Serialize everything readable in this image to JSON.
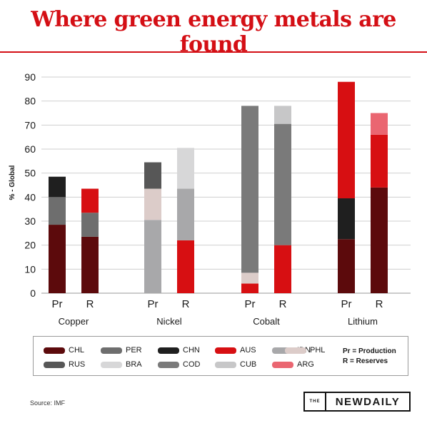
{
  "title": "Where green energy metals are found",
  "source": "Source: IMF",
  "logo": {
    "the": "THE",
    "name": "NEWDAILY"
  },
  "chart_data": {
    "type": "bar",
    "stacked": true,
    "ylabel": "% - Global",
    "ylim": [
      0,
      90
    ],
    "yticks": [
      0,
      10,
      20,
      30,
      40,
      50,
      60,
      70,
      80,
      90
    ],
    "grid": true,
    "groups": [
      {
        "name": "Copper",
        "bars": [
          {
            "label": "Pr",
            "segments": [
              {
                "code": "CHL",
                "value": 28.5
              },
              {
                "code": "PER",
                "value": 11.5
              },
              {
                "code": "CHN",
                "value": 8.5
              }
            ]
          },
          {
            "label": "R",
            "segments": [
              {
                "code": "CHL",
                "value": 23.5
              },
              {
                "code": "PER",
                "value": 10
              },
              {
                "code": "AUS",
                "value": 10
              }
            ]
          }
        ]
      },
      {
        "name": "Nickel",
        "bars": [
          {
            "label": "Pr",
            "segments": [
              {
                "code": "IDN",
                "value": 30.5
              },
              {
                "code": "PHL",
                "value": 13
              },
              {
                "code": "RUS",
                "value": 11
              }
            ]
          },
          {
            "label": "R",
            "segments": [
              {
                "code": "AUS",
                "value": 22
              },
              {
                "code": "IDN",
                "value": 21.5
              },
              {
                "code": "BRA",
                "value": 17
              }
            ]
          }
        ]
      },
      {
        "name": "Cobalt",
        "bars": [
          {
            "label": "Pr",
            "segments": [
              {
                "code": "AUS",
                "value": 4
              },
              {
                "code": "PHL",
                "value": 4.5
              },
              {
                "code": "COD",
                "value": 69.5
              }
            ]
          },
          {
            "label": "R",
            "segments": [
              {
                "code": "AUS",
                "value": 20
              },
              {
                "code": "COD",
                "value": 50.5
              },
              {
                "code": "CUB",
                "value": 7.5
              }
            ]
          }
        ]
      },
      {
        "name": "Lithium",
        "bars": [
          {
            "label": "Pr",
            "segments": [
              {
                "code": "CHL",
                "value": 22.5
              },
              {
                "code": "CHN",
                "value": 17
              },
              {
                "code": "AUS",
                "value": 48.5
              }
            ]
          },
          {
            "label": "R",
            "segments": [
              {
                "code": "CHL",
                "value": 44
              },
              {
                "code": "AUS",
                "value": 22
              },
              {
                "code": "ARG",
                "value": 9
              }
            ]
          }
        ]
      }
    ],
    "legend": [
      {
        "code": "CHL",
        "color": "#5c0a0c"
      },
      {
        "code": "PER",
        "color": "#6e6e6e"
      },
      {
        "code": "CHN",
        "color": "#1f1f1f"
      },
      {
        "code": "AUS",
        "color": "#d70f12"
      },
      {
        "code": "IDN",
        "color": "#a8a8aa"
      },
      {
        "code": "PHL",
        "color": "#dcccc9"
      },
      {
        "code": "RUS",
        "color": "#575757"
      },
      {
        "code": "BRA",
        "color": "#d7d7d8"
      },
      {
        "code": "COD",
        "color": "#7a7a7a"
      },
      {
        "code": "CUB",
        "color": "#c7c7c8"
      },
      {
        "code": "ARG",
        "color": "#ea6671"
      }
    ],
    "legend_notes": [
      "Pr = Production",
      "R = Reserves"
    ]
  }
}
